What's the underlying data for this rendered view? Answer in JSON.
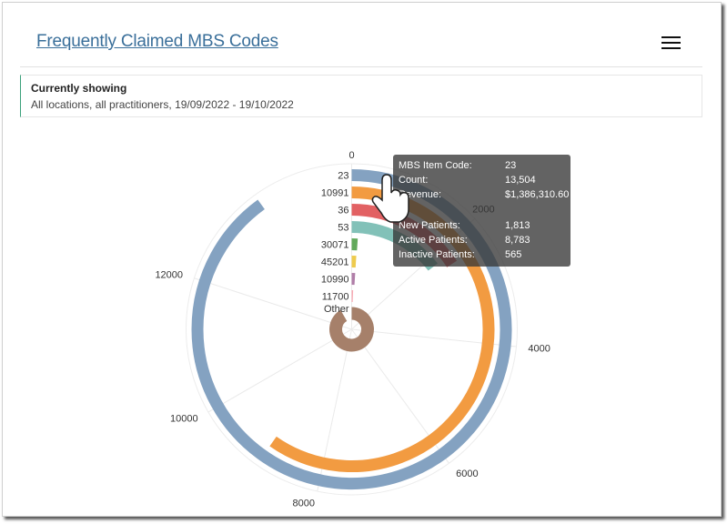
{
  "header": {
    "title": "Frequently Claimed MBS Codes",
    "menu_icon": "hamburger-icon"
  },
  "filter": {
    "heading": "Currently showing",
    "text": "All locations, all practitioners, 19/09/2022 - 19/10/2022"
  },
  "chart_data": {
    "type": "radial-bar",
    "axis_max": 15000,
    "tick_labels": [
      "0",
      "2000",
      "4000",
      "6000",
      "8000",
      "10000",
      "12000"
    ],
    "ticks": [
      0,
      2000,
      4000,
      6000,
      8000,
      10000,
      12000
    ],
    "categories": [
      "23",
      "10991",
      "36",
      "53",
      "30071",
      "45201",
      "10990",
      "11700",
      "Other"
    ],
    "values": [
      13504,
      8960,
      2370,
      2190,
      160,
      150,
      150,
      90,
      13750
    ],
    "colors": [
      "#84a2c1",
      "#f29b41",
      "#e26163",
      "#82c1b8",
      "#62a95b",
      "#eecb4e",
      "#b07ea8",
      "#f8a9b3",
      "#a6806a"
    ],
    "grid": true
  },
  "tooltip": {
    "rows": [
      {
        "label": "MBS Item Code:",
        "value": "23"
      },
      {
        "label": "Count:",
        "value": "13,504"
      },
      {
        "label": "Revenue:",
        "value": "$1,386,310.60"
      },
      {
        "label": "New Patients:",
        "value": "1,813"
      },
      {
        "label": "Active Patients:",
        "value": "8,783"
      },
      {
        "label": "Inactive Patients:",
        "value": "565"
      }
    ]
  }
}
